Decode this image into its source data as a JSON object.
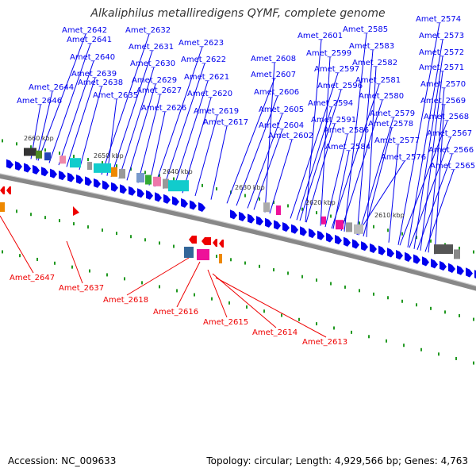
{
  "title": "Alkaliphilus metalliredigens QYMF, complete genome",
  "footer": {
    "accession": "Accession: NC_009633",
    "topology": "Topology: circular; Length: 4,929,566 bp; Genes: 4,763"
  },
  "colors": {
    "forward": "#0000ee",
    "reverse": "#ee0000",
    "backbone": "#888888",
    "tick": "#229922"
  },
  "kbp_labels": [
    "2660 kbp",
    "2650 kbp",
    "2640 kbp",
    "2630 kbp",
    "2620 kbp",
    "2610 kbp"
  ],
  "forward_labels": [
    "Amet_2642",
    "Amet_2641",
    "Amet_2640",
    "Amet_2639",
    "Amet_2638",
    "Amet_2644",
    "Amet_2646",
    "Amet_2632",
    "Amet_2631",
    "Amet_2630",
    "Amet_2629",
    "Amet_2627",
    "Amet_2626",
    "Amet_2635",
    "Amet_2623",
    "Amet_2622",
    "Amet_2621",
    "Amet_2620",
    "Amet_2619",
    "Amet_2617",
    "Amet_2608",
    "Amet_2607",
    "Amet_2606",
    "Amet_2605",
    "Amet_2604",
    "Amet_2602",
    "Amet_2601",
    "Amet_2599",
    "Amet_2597",
    "Amet_2596",
    "Amet_2594",
    "Amet_2591",
    "Amet_2585",
    "Amet_2583",
    "Amet_2582",
    "Amet_2581",
    "Amet_2580",
    "Amet_2579",
    "Amet_2578",
    "Amet_2586",
    "Amet_2584",
    "Amet_2577",
    "Amet_2576",
    "Amet_2574",
    "Amet_2573",
    "Amet_2572",
    "Amet_2571",
    "Amet_2570",
    "Amet_2569",
    "Amet_2568",
    "Amet_2567",
    "Amet_2566",
    "Amet_2565"
  ],
  "reverse_labels": [
    "Amet_2647",
    "Amet_2637",
    "Amet_2618",
    "Amet_2616",
    "Amet_2615",
    "Amet_2614",
    "Amet_2613"
  ]
}
